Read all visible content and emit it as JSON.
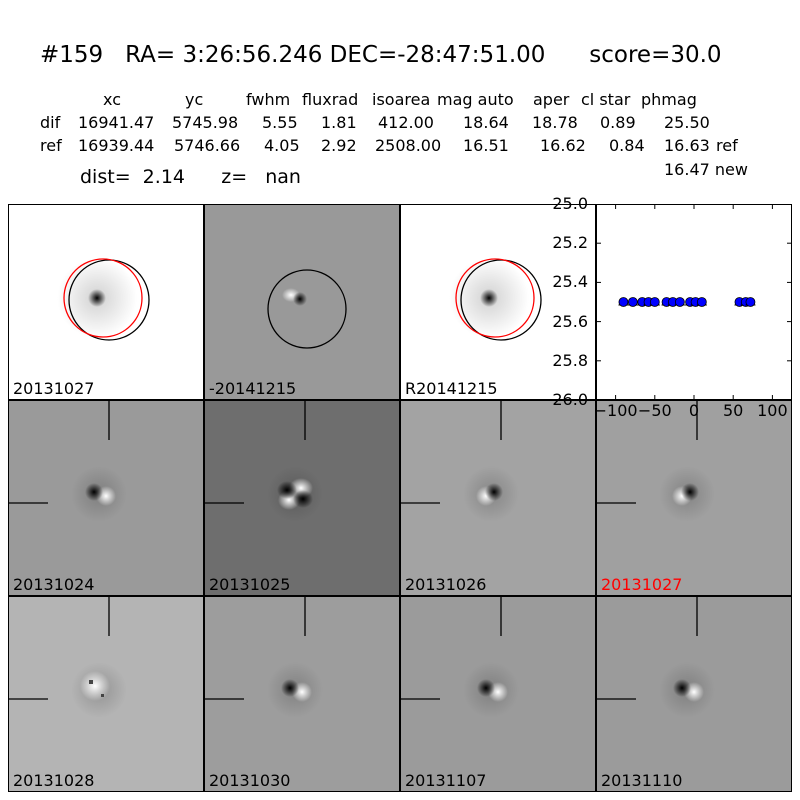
{
  "header": {
    "title": "#159   RA= 3:26:56.246 DEC=-28:47:51.00      score=30.0",
    "columns": [
      "xc",
      "yc",
      "fwhm",
      "fluxrad",
      "isoarea",
      "mag auto",
      "aper",
      "cl star",
      "phmag"
    ],
    "rows": [
      {
        "label": "dif",
        "values": [
          "16941.47",
          "5745.98",
          "5.55",
          "1.81",
          "412.00",
          "18.64",
          "18.78",
          "0.89",
          "25.50"
        ],
        "suffix": ""
      },
      {
        "label": "ref",
        "values": [
          "16939.44",
          "5746.66",
          "4.05",
          "2.92",
          "2508.00",
          "16.51",
          "16.62",
          "0.84",
          "16.63"
        ],
        "suffix": "ref"
      }
    ],
    "dist_line": "dist=  2.14      z=   nan",
    "new_mag": "16.47 new"
  },
  "panels": [
    {
      "label": "20131027",
      "bg": "#ffffff",
      "circles": true,
      "label_color": "#000000"
    },
    {
      "label": "-20141215",
      "bg": "#999999",
      "circles": true,
      "label_color": "#000000"
    },
    {
      "label": "R20141215",
      "bg": "#ffffff",
      "circles": true,
      "label_color": "#000000"
    },
    {
      "label": "20131024",
      "bg": "#9a9a9a",
      "label_color": "#000000"
    },
    {
      "label": "20131025",
      "bg": "#6e6e6e",
      "label_color": "#000000"
    },
    {
      "label": "20131026",
      "bg": "#a3a3a3",
      "label_color": "#000000"
    },
    {
      "label": "20131027",
      "bg": "#a0a0a0",
      "label_color": "#ff0000"
    },
    {
      "label": "20131028",
      "bg": "#b4b4b4",
      "label_color": "#000000"
    },
    {
      "label": "20131030",
      "bg": "#9d9d9d",
      "label_color": "#000000"
    },
    {
      "label": "20131107",
      "bg": "#9b9b9b",
      "label_color": "#000000"
    },
    {
      "label": "20131110",
      "bg": "#9b9b9b",
      "label_color": "#000000"
    }
  ],
  "chart_data": {
    "type": "scatter",
    "title": "",
    "xlabel": "",
    "ylabel": "",
    "xlim": [
      -125,
      125
    ],
    "ylim": [
      26.0,
      25.0
    ],
    "x_ticks": [
      -100,
      -50,
      0,
      50,
      100
    ],
    "x_tick_labels": [
      "−100",
      "−50",
      "0",
      "50",
      "100"
    ],
    "y_ticks": [
      25.0,
      25.2,
      25.4,
      25.6,
      25.8,
      26.0
    ],
    "y_tick_labels": [
      "25.0",
      "25.2",
      "25.4",
      "25.6",
      "25.8",
      "26.0"
    ],
    "marker_color": "#0000ff",
    "points": [
      {
        "x": -90,
        "y": 25.5
      },
      {
        "x": -78,
        "y": 25.5
      },
      {
        "x": -66,
        "y": 25.5
      },
      {
        "x": -58,
        "y": 25.5
      },
      {
        "x": -50,
        "y": 25.5
      },
      {
        "x": -35,
        "y": 25.5
      },
      {
        "x": -27,
        "y": 25.5
      },
      {
        "x": -18,
        "y": 25.5
      },
      {
        "x": -5,
        "y": 25.5
      },
      {
        "x": 2,
        "y": 25.5
      },
      {
        "x": 10,
        "y": 25.5
      },
      {
        "x": 58,
        "y": 25.5
      },
      {
        "x": 66,
        "y": 25.5
      },
      {
        "x": 72,
        "y": 25.5
      }
    ]
  }
}
